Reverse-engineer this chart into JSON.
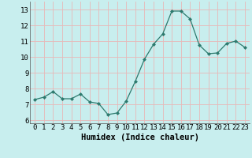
{
  "x_points": [
    0,
    1,
    2,
    3,
    4,
    5,
    6,
    7,
    8,
    9,
    10,
    11,
    12,
    13,
    14,
    15,
    16,
    17,
    18,
    19,
    20,
    21,
    22,
    23
  ],
  "y_points": [
    7.3,
    7.45,
    7.8,
    7.35,
    7.35,
    7.65,
    7.15,
    7.05,
    6.35,
    6.45,
    7.2,
    8.45,
    9.85,
    10.8,
    11.45,
    12.9,
    12.9,
    12.4,
    10.75,
    10.2,
    10.25,
    10.85,
    11.0,
    10.6
  ],
  "line_color": "#2d7a6e",
  "marker_color": "#2d7a6e",
  "bg_color": "#c8eeee",
  "grid_color": "#e8b8b8",
  "xlabel": "Humidex (Indice chaleur)",
  "xlim": [
    -0.5,
    23.5
  ],
  "ylim": [
    5.8,
    13.5
  ],
  "yticks": [
    6,
    7,
    8,
    9,
    10,
    11,
    12,
    13
  ],
  "xticks": [
    0,
    1,
    2,
    3,
    4,
    5,
    6,
    7,
    8,
    9,
    10,
    11,
    12,
    13,
    14,
    15,
    16,
    17,
    18,
    19,
    20,
    21,
    22,
    23
  ],
  "xlabel_fontsize": 7.5,
  "tick_fontsize": 6.5
}
